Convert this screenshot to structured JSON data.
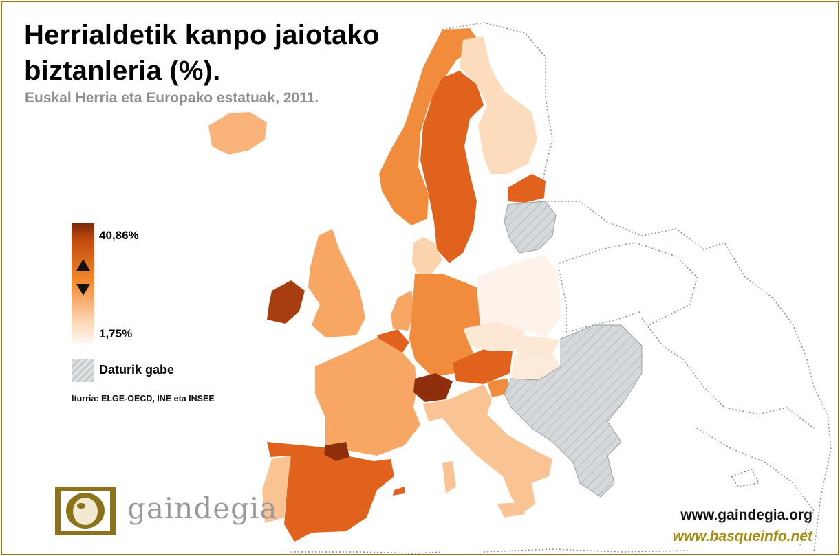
{
  "title_line1": "Herrialdetik kanpo jaiotako",
  "title_line2": "biztanleria (%).",
  "subtitle": "Euskal Herria eta Europako estatuak, 2011.",
  "legend": {
    "max_label": "40,86%",
    "min_label": "1,75%",
    "max_value": 40.86,
    "min_value": 1.75,
    "no_data_label": "Daturik gabe",
    "colors": {
      "dark": "#7a2a0c",
      "mid": "#f28a2c",
      "light": "#fff7f0",
      "no_data": "#c9cdcf"
    }
  },
  "source": "Iturria: ELGE-OECD, INE eta INSEE",
  "logo": {
    "text": "gaindegia",
    "icon": "gaindegia-logo-icon"
  },
  "urls": {
    "primary": "www.gaindegia.org",
    "secondary": "www.basqueinfo.net"
  },
  "regions": [
    {
      "name": "Basque Country",
      "color": "#8e2e0d"
    },
    {
      "name": "Switzerland",
      "color": "#8e2e0d"
    },
    {
      "name": "Ireland",
      "color": "#a83e10"
    },
    {
      "name": "Spain",
      "color": "#e0621d"
    },
    {
      "name": "Austria",
      "color": "#e0621d"
    },
    {
      "name": "Sweden",
      "color": "#e0621d"
    },
    {
      "name": "Estonia",
      "color": "#e0621d"
    },
    {
      "name": "Belgium",
      "color": "#e0621d"
    },
    {
      "name": "Germany",
      "color": "#f08c3c"
    },
    {
      "name": "Norway",
      "color": "#f08c3c"
    },
    {
      "name": "Slovenia",
      "color": "#f08c3c"
    },
    {
      "name": "France",
      "color": "#f7a664"
    },
    {
      "name": "United Kingdom",
      "color": "#f7a664"
    },
    {
      "name": "Netherlands",
      "color": "#f7a664"
    },
    {
      "name": "Iceland",
      "color": "#f9b27a"
    },
    {
      "name": "Italy",
      "color": "#f9c394"
    },
    {
      "name": "Portugal",
      "color": "#f9c394"
    },
    {
      "name": "Denmark",
      "color": "#fbd3ad"
    },
    {
      "name": "Finland",
      "color": "#fcdcbd"
    },
    {
      "name": "Czech Republic",
      "color": "#fde8d5"
    },
    {
      "name": "Slovakia",
      "color": "#fde8d5"
    },
    {
      "name": "Hungary",
      "color": "#fdebd9"
    },
    {
      "name": "Poland",
      "color": "#fef3ea"
    },
    {
      "name": "Latvia",
      "color": "#c9cdcf"
    },
    {
      "name": "Lithuania",
      "color": "#c9cdcf"
    },
    {
      "name": "Balkans",
      "color": "#c9cdcf"
    },
    {
      "name": "Romania",
      "color": "#c9cdcf"
    },
    {
      "name": "Bulgaria",
      "color": "#c9cdcf"
    },
    {
      "name": "Greece",
      "color": "#c9cdcf"
    }
  ]
}
